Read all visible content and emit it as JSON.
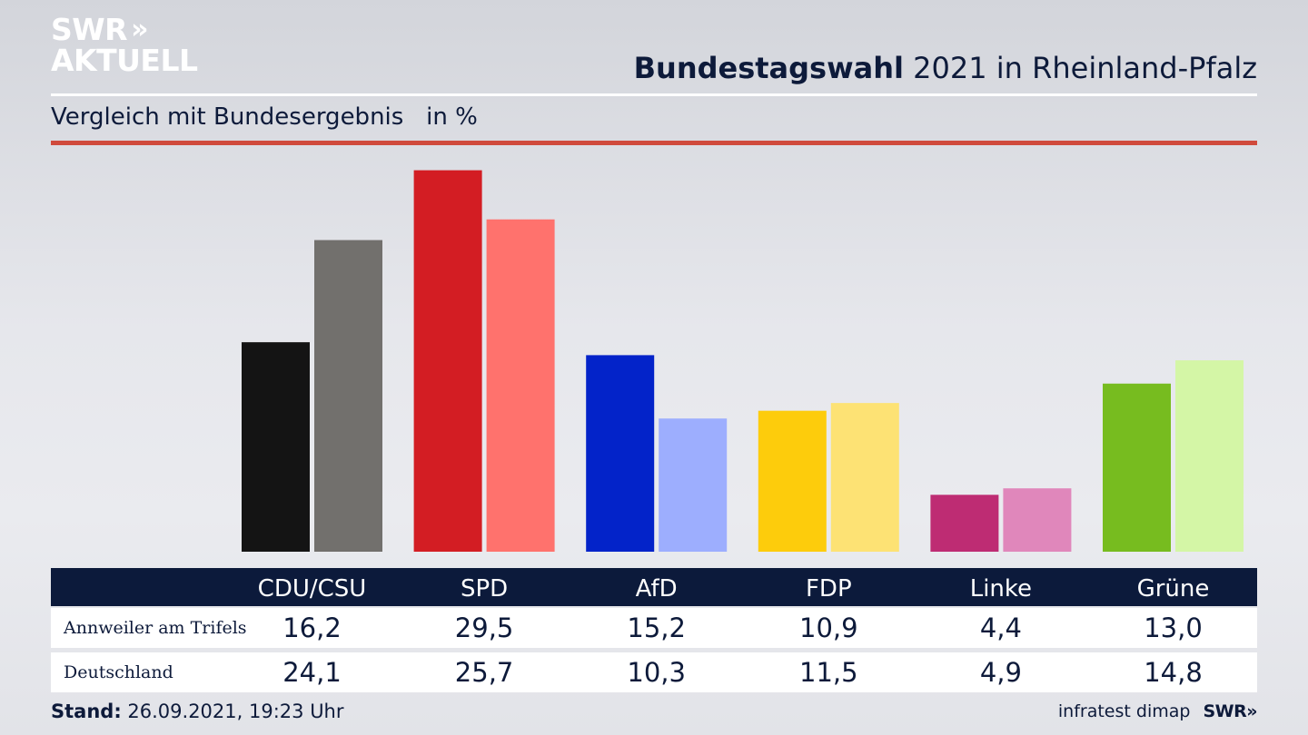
{
  "brand": {
    "line1": "SWR",
    "line2": "AKTUELL",
    "chevrons": "»"
  },
  "headline": {
    "bold": "Bundestagswahl",
    "rest": "2021 in Rheinland-Pfalz"
  },
  "subtitle": "Vergleich mit Bundesergebnis   in %",
  "rows": [
    {
      "label": "Annweiler am Trifels",
      "values": [
        "16,2",
        "29,5",
        "15,2",
        "10,9",
        "4,4",
        "13,0"
      ]
    },
    {
      "label": "Deutschland",
      "values": [
        "24,1",
        "25,7",
        "10,3",
        "11,5",
        "4,9",
        "14,8"
      ]
    }
  ],
  "footer": {
    "stand_label": "Stand:",
    "stand_value": "26.09.2021, 19:23 Uhr",
    "source": "infratest dimap",
    "logo": "SWR",
    "logo_chev": "»"
  },
  "chart_data": {
    "type": "bar",
    "title": "Bundestagswahl 2021 in Rheinland-Pfalz",
    "subtitle": "Vergleich mit Bundesergebnis in %",
    "categories": [
      "CDU/CSU",
      "SPD",
      "AfD",
      "FDP",
      "Linke",
      "Grüne"
    ],
    "series": [
      {
        "name": "Annweiler am Trifels",
        "values": [
          16.2,
          29.5,
          15.2,
          10.9,
          4.4,
          13.0
        ]
      },
      {
        "name": "Deutschland",
        "values": [
          24.1,
          25.7,
          10.3,
          11.5,
          4.9,
          14.8
        ]
      }
    ],
    "colors": {
      "primary": [
        "#141414",
        "#d31d23",
        "#0323c9",
        "#fdcc0c",
        "#be2c73",
        "#77bc1f"
      ],
      "secondary": [
        "#72706d",
        "#ff726d",
        "#9daefe",
        "#fde274",
        "#e087bb",
        "#d4f6a6"
      ]
    },
    "ylabel": "%",
    "ylim": [
      0,
      30
    ]
  }
}
